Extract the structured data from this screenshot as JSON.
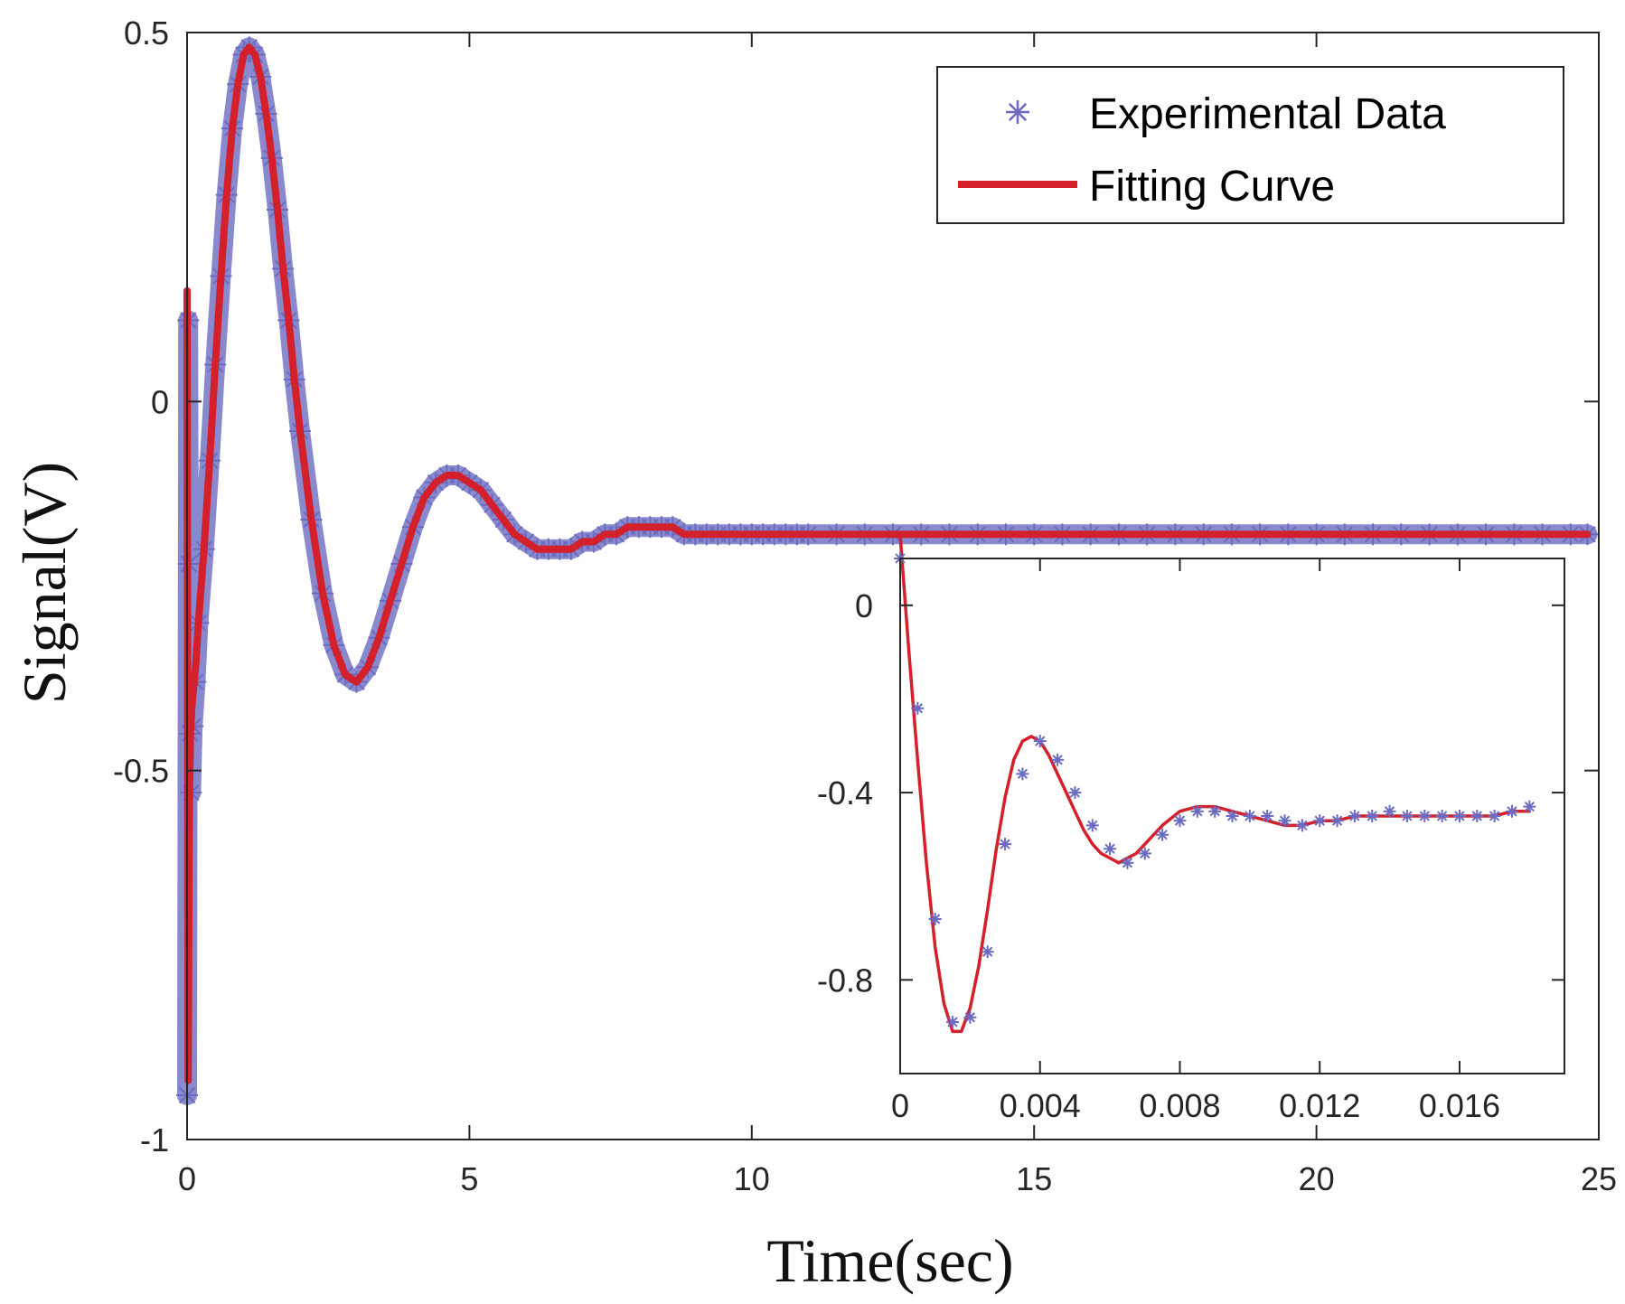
{
  "chart_data": [
    {
      "id": "main",
      "type": "line",
      "xlabel": "Time(sec)",
      "ylabel": "Signal(V)",
      "xlim": [
        0,
        25
      ],
      "ylim": [
        -1,
        0.5
      ],
      "xticks": [
        0,
        5,
        10,
        15,
        20,
        25
      ],
      "yticks": [
        0.5,
        0,
        -0.5,
        -1
      ],
      "xtick_labels": [
        "0",
        "5",
        "10",
        "15",
        "20",
        "25"
      ],
      "ytick_labels": [
        "0.5",
        "0",
        "-0.5",
        "-1"
      ],
      "grid": false,
      "legend_position": "top-right",
      "series": [
        {
          "name": "Experimental Data",
          "marker": "asterisk",
          "color": "#6b6bc2",
          "x": [
            0.0,
            0.02,
            0.03,
            0.05,
            0.07,
            0.1,
            0.15,
            0.2,
            0.3,
            0.4,
            0.5,
            0.6,
            0.7,
            0.8,
            0.9,
            1.0,
            1.1,
            1.2,
            1.3,
            1.4,
            1.5,
            1.6,
            1.7,
            1.8,
            1.9,
            2.0,
            2.2,
            2.4,
            2.6,
            2.8,
            3.0,
            3.2,
            3.4,
            3.6,
            3.8,
            4.0,
            4.2,
            4.4,
            4.6,
            4.8,
            5.0,
            5.2,
            5.4,
            5.6,
            5.8,
            6.0,
            6.2,
            6.4,
            6.6,
            6.8,
            7.0,
            7.2,
            7.4,
            7.6,
            7.8,
            8.0,
            8.2,
            8.4,
            8.6,
            8.8,
            9.0,
            9.2,
            9.4,
            9.6,
            9.8,
            10.0,
            10.2,
            10.4,
            10.6,
            10.8,
            11.0,
            11.5,
            12.0,
            12.5,
            13.0,
            13.5,
            14.0,
            14.5,
            15.0,
            15.5,
            16.0,
            16.5,
            17.0,
            17.5,
            18.0,
            18.5,
            19.0,
            19.5,
            20.0,
            20.5,
            21.0,
            21.5,
            22.0,
            22.5,
            23.0,
            23.5,
            24.0,
            24.5,
            24.8
          ],
          "y": [
            -0.94,
            0.11,
            -0.22,
            -0.45,
            -0.53,
            -0.44,
            -0.38,
            -0.3,
            -0.2,
            -0.08,
            0.05,
            0.17,
            0.28,
            0.37,
            0.43,
            0.47,
            0.48,
            0.47,
            0.44,
            0.39,
            0.33,
            0.26,
            0.18,
            0.11,
            0.03,
            -0.04,
            -0.16,
            -0.26,
            -0.33,
            -0.37,
            -0.38,
            -0.36,
            -0.32,
            -0.27,
            -0.22,
            -0.17,
            -0.13,
            -0.11,
            -0.1,
            -0.1,
            -0.11,
            -0.12,
            -0.14,
            -0.16,
            -0.18,
            -0.19,
            -0.2,
            -0.2,
            -0.2,
            -0.2,
            -0.19,
            -0.19,
            -0.18,
            -0.18,
            -0.17,
            -0.17,
            -0.17,
            -0.17,
            -0.17,
            -0.18,
            -0.18,
            -0.18,
            -0.18,
            -0.18,
            -0.18,
            -0.18,
            -0.18,
            -0.18,
            -0.18,
            -0.18,
            -0.18,
            -0.18,
            -0.18,
            -0.18,
            -0.18,
            -0.18,
            -0.18,
            -0.18,
            -0.18,
            -0.18,
            -0.18,
            -0.18,
            -0.18,
            -0.18,
            -0.18,
            -0.18,
            -0.18,
            -0.18,
            -0.18,
            -0.18,
            -0.18,
            -0.18,
            -0.18,
            -0.18,
            -0.18,
            -0.18,
            -0.18,
            -0.18,
            -0.18
          ]
        },
        {
          "name": "Fitting Curve",
          "marker": "none",
          "color": "#d4202a",
          "x": [
            0.0,
            0.02,
            0.04,
            0.06,
            0.08,
            0.1,
            0.15,
            0.2,
            0.3,
            0.4,
            0.5,
            0.6,
            0.7,
            0.8,
            0.9,
            1.0,
            1.1,
            1.2,
            1.3,
            1.4,
            1.5,
            1.6,
            1.7,
            1.8,
            1.9,
            2.0,
            2.2,
            2.4,
            2.6,
            2.8,
            3.0,
            3.2,
            3.4,
            3.6,
            3.8,
            4.0,
            4.2,
            4.4,
            4.6,
            4.8,
            5.0,
            5.2,
            5.4,
            5.6,
            5.8,
            6.0,
            6.2,
            6.4,
            6.6,
            6.8,
            7.0,
            7.2,
            7.4,
            7.6,
            7.8,
            8.0,
            8.2,
            8.4,
            8.6,
            8.8,
            9.0,
            9.2,
            9.4,
            9.6,
            9.8,
            10.0,
            10.5,
            11.0,
            11.5,
            12.0,
            13.0,
            14.0,
            15.0,
            16.0,
            17.0,
            18.0,
            19.0,
            20.0,
            21.0,
            22.0,
            23.0,
            24.0,
            24.8
          ],
          "y": [
            0.15,
            -0.92,
            -0.55,
            -0.45,
            -0.42,
            -0.4,
            -0.36,
            -0.3,
            -0.2,
            -0.08,
            0.05,
            0.17,
            0.28,
            0.37,
            0.43,
            0.47,
            0.48,
            0.47,
            0.44,
            0.39,
            0.33,
            0.26,
            0.18,
            0.11,
            0.03,
            -0.04,
            -0.16,
            -0.26,
            -0.33,
            -0.37,
            -0.38,
            -0.36,
            -0.32,
            -0.27,
            -0.22,
            -0.17,
            -0.13,
            -0.11,
            -0.1,
            -0.1,
            -0.11,
            -0.12,
            -0.14,
            -0.16,
            -0.18,
            -0.19,
            -0.2,
            -0.2,
            -0.2,
            -0.2,
            -0.19,
            -0.19,
            -0.18,
            -0.18,
            -0.17,
            -0.17,
            -0.17,
            -0.17,
            -0.17,
            -0.18,
            -0.18,
            -0.18,
            -0.18,
            -0.18,
            -0.18,
            -0.18,
            -0.18,
            -0.18,
            -0.18,
            -0.18,
            -0.18,
            -0.18,
            -0.18,
            -0.18,
            -0.18,
            -0.18,
            -0.18,
            -0.18,
            -0.18,
            -0.18,
            -0.18,
            -0.18,
            -0.18
          ]
        }
      ]
    },
    {
      "id": "inset",
      "type": "line",
      "xlim": [
        0,
        0.019
      ],
      "ylim": [
        -1.0,
        0.1
      ],
      "xticks": [
        0,
        0.004,
        0.008,
        0.012,
        0.016
      ],
      "yticks": [
        0,
        -0.4,
        -0.8
      ],
      "xtick_labels": [
        "0",
        "0.004",
        "0.008",
        "0.012",
        "0.016"
      ],
      "ytick_labels": [
        "0",
        "-0.4",
        "-0.8"
      ],
      "grid": false,
      "series": [
        {
          "name": "Experimental Data",
          "marker": "asterisk",
          "color": "#6b6bc2",
          "x": [
            0.0,
            0.0005,
            0.001,
            0.0015,
            0.002,
            0.0025,
            0.003,
            0.0035,
            0.004,
            0.0045,
            0.005,
            0.0055,
            0.006,
            0.0065,
            0.007,
            0.0075,
            0.008,
            0.0085,
            0.009,
            0.0095,
            0.01,
            0.0105,
            0.011,
            0.0115,
            0.012,
            0.0125,
            0.013,
            0.0135,
            0.014,
            0.0145,
            0.015,
            0.0155,
            0.016,
            0.0165,
            0.017,
            0.0175,
            0.018
          ],
          "y": [
            0.1,
            -0.22,
            -0.67,
            -0.89,
            -0.88,
            -0.74,
            -0.51,
            -0.36,
            -0.29,
            -0.33,
            -0.4,
            -0.47,
            -0.52,
            -0.55,
            -0.53,
            -0.49,
            -0.46,
            -0.44,
            -0.44,
            -0.45,
            -0.45,
            -0.45,
            -0.46,
            -0.47,
            -0.46,
            -0.46,
            -0.45,
            -0.45,
            -0.44,
            -0.45,
            -0.45,
            -0.45,
            -0.45,
            -0.45,
            -0.45,
            -0.44,
            -0.43
          ]
        },
        {
          "name": "Fitting Curve",
          "marker": "none",
          "color": "#d4202a",
          "x": [
            0.0,
            0.00025,
            0.0005,
            0.00075,
            0.001,
            0.00125,
            0.0015,
            0.00175,
            0.002,
            0.00225,
            0.0025,
            0.00275,
            0.003,
            0.00325,
            0.0035,
            0.00375,
            0.004,
            0.00425,
            0.0045,
            0.00475,
            0.005,
            0.00525,
            0.0055,
            0.00575,
            0.006,
            0.00625,
            0.0065,
            0.00675,
            0.007,
            0.0075,
            0.008,
            0.0085,
            0.009,
            0.0095,
            0.01,
            0.0105,
            0.011,
            0.0115,
            0.012,
            0.0125,
            0.013,
            0.0135,
            0.014,
            0.0145,
            0.015,
            0.0155,
            0.016,
            0.0165,
            0.017,
            0.0175,
            0.018
          ],
          "y": [
            0.15,
            -0.1,
            -0.33,
            -0.55,
            -0.73,
            -0.85,
            -0.91,
            -0.91,
            -0.86,
            -0.77,
            -0.65,
            -0.52,
            -0.41,
            -0.33,
            -0.29,
            -0.28,
            -0.29,
            -0.32,
            -0.36,
            -0.4,
            -0.44,
            -0.48,
            -0.51,
            -0.53,
            -0.54,
            -0.55,
            -0.54,
            -0.53,
            -0.51,
            -0.47,
            -0.44,
            -0.43,
            -0.43,
            -0.44,
            -0.45,
            -0.46,
            -0.47,
            -0.47,
            -0.46,
            -0.46,
            -0.45,
            -0.45,
            -0.45,
            -0.45,
            -0.45,
            -0.45,
            -0.45,
            -0.45,
            -0.45,
            -0.44,
            -0.44
          ]
        }
      ]
    }
  ],
  "legend": {
    "items": [
      {
        "label": "Experimental Data",
        "marker": "asterisk",
        "color": "#6b6bc2"
      },
      {
        "label": "Fitting Curve",
        "marker": "line",
        "color": "#d4202a"
      }
    ]
  },
  "colors": {
    "axis": "#262626",
    "data_marker": "#6b6bc2",
    "fit_line": "#d4202a"
  }
}
